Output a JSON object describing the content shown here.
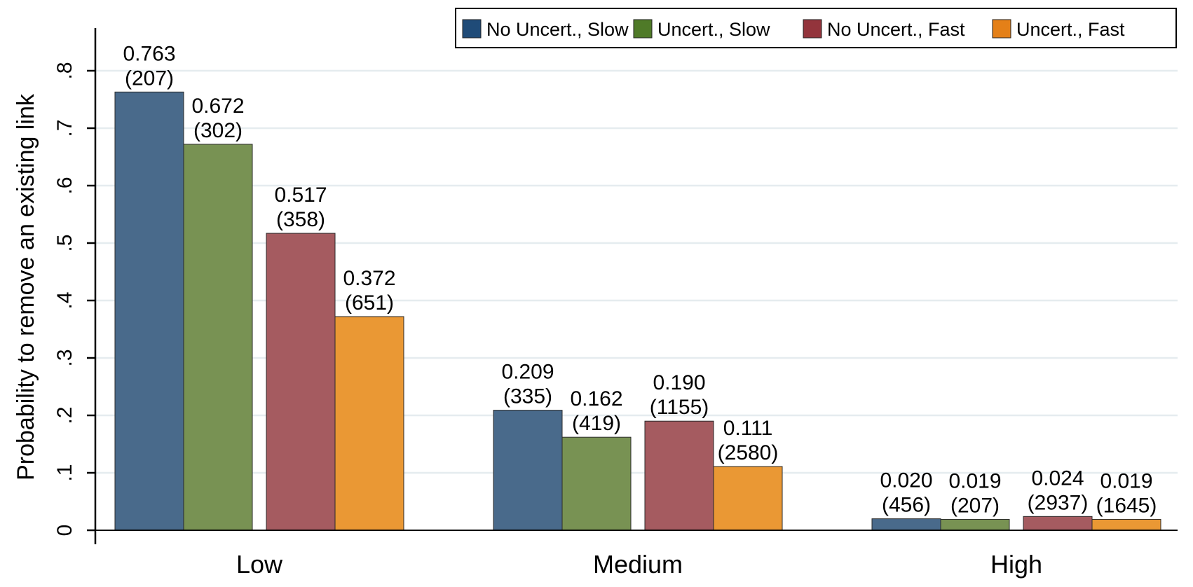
{
  "chart_data": {
    "type": "bar",
    "ylabel": "Probability to remove an existing link",
    "xlabel": "",
    "ylim": [
      0,
      0.85
    ],
    "yticks": [
      0,
      0.1,
      0.2,
      0.3,
      0.4,
      0.5,
      0.6,
      0.7,
      0.8
    ],
    "ytick_labels": [
      "0",
      ".1",
      ".2",
      ".3",
      ".4",
      ".5",
      ".6",
      ".7",
      ".8"
    ],
    "grid": true,
    "legend_position": "top-right",
    "categories": [
      "Low",
      "Medium",
      "High"
    ],
    "series": [
      {
        "name": "No Uncert., Slow",
        "color": "#496a8b",
        "values": [
          0.763,
          0.209,
          0.02
        ],
        "labels": [
          "0.763",
          "0.209",
          "0.020"
        ],
        "counts": [
          "(207)",
          "(335)",
          "(456)"
        ]
      },
      {
        "name": "Uncert., Slow",
        "color": "#789253",
        "values": [
          0.672,
          0.162,
          0.019
        ],
        "labels": [
          "0.672",
          "0.162",
          "0.019"
        ],
        "counts": [
          "(302)",
          "(419)",
          "(207)"
        ]
      },
      {
        "name": "No Uncert., Fast",
        "color": "#a55b60",
        "values": [
          0.517,
          0.19,
          0.024
        ],
        "labels": [
          "0.517",
          "0.190",
          "0.024"
        ],
        "counts": [
          "(358)",
          "(1155)",
          "(2937)"
        ]
      },
      {
        "name": "Uncert., Fast",
        "color": "#ea9834",
        "values": [
          0.372,
          0.111,
          0.019
        ],
        "labels": [
          "0.372",
          "0.111",
          "0.019"
        ],
        "counts": [
          "(651)",
          "(2580)",
          "(1645)"
        ]
      }
    ],
    "legend_swatch_colors": [
      "#1f4b78",
      "#4f7a28",
      "#93343c",
      "#e48018"
    ]
  }
}
